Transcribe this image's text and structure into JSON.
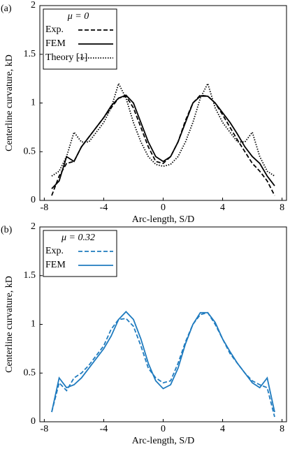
{
  "chart_data": [
    {
      "type": "line",
      "panel_label": "(a)",
      "xlabel": "Arc-length, S/D",
      "ylabel": "Centerline curvature, kD",
      "legend_title": "μ = 0",
      "legend": "upper left",
      "xlim": [
        -8.3,
        8.3
      ],
      "ylim": [
        0,
        2
      ],
      "xticks": [
        -8,
        -4,
        0,
        4,
        8
      ],
      "yticks": [
        0,
        0.5,
        1,
        1.5,
        2
      ],
      "x": [
        -7.5,
        -7,
        -6.5,
        -6,
        -5.5,
        -5,
        -4.5,
        -4,
        -3.5,
        -3,
        -2.5,
        -2,
        -1.5,
        -1,
        -0.5,
        0,
        0.5,
        1,
        1.5,
        2,
        2.5,
        3,
        3.5,
        4,
        4.5,
        5,
        5.5,
        6,
        6.5,
        7,
        7.5
      ],
      "series": [
        {
          "name": "Exp.",
          "color": "#000000",
          "linestyle": "dashed",
          "values": [
            0.05,
            0.25,
            0.38,
            0.4,
            0.55,
            0.65,
            0.75,
            0.85,
            0.95,
            1.05,
            1.07,
            0.95,
            0.75,
            0.55,
            0.4,
            0.38,
            0.45,
            0.6,
            0.82,
            1.0,
            1.08,
            1.07,
            1.0,
            0.88,
            0.75,
            0.62,
            0.5,
            0.38,
            0.3,
            0.2,
            0.05
          ]
        },
        {
          "name": "FEM",
          "color": "#000000",
          "linestyle": "solid",
          "values": [
            0.12,
            0.2,
            0.45,
            0.4,
            0.55,
            0.65,
            0.75,
            0.85,
            0.97,
            1.05,
            1.08,
            1.0,
            0.8,
            0.6,
            0.45,
            0.4,
            0.45,
            0.6,
            0.8,
            1.0,
            1.07,
            1.07,
            1.0,
            0.9,
            0.8,
            0.68,
            0.55,
            0.45,
            0.38,
            0.25,
            0.15
          ]
        },
        {
          "name": "Theory [1]",
          "color": "#000000",
          "linestyle": "dotted",
          "values": [
            0.25,
            0.3,
            0.45,
            0.7,
            0.6,
            0.6,
            0.7,
            0.8,
            0.95,
            1.2,
            1.05,
            0.8,
            0.6,
            0.45,
            0.37,
            0.35,
            0.37,
            0.45,
            0.6,
            0.8,
            1.05,
            1.2,
            0.95,
            0.8,
            0.7,
            0.6,
            0.6,
            0.7,
            0.45,
            0.3,
            0.25
          ]
        }
      ]
    },
    {
      "type": "line",
      "panel_label": "(b)",
      "xlabel": "Arc-length, S/D",
      "ylabel": "Centerline curvature, kD",
      "legend_title": "μ = 0.32",
      "legend": "upper left",
      "xlim": [
        -8.3,
        8.3
      ],
      "ylim": [
        0,
        2
      ],
      "xticks": [
        -8,
        -4,
        0,
        4,
        8
      ],
      "yticks": [
        0,
        0.5,
        1,
        1.5,
        2
      ],
      "x": [
        -7.5,
        -7,
        -6.5,
        -6,
        -5.5,
        -5,
        -4.5,
        -4,
        -3.5,
        -3,
        -2.5,
        -2,
        -1.5,
        -1,
        -0.5,
        0,
        0.5,
        1,
        1.5,
        2,
        2.5,
        3,
        3.5,
        4,
        4.5,
        5,
        5.5,
        6,
        6.5,
        7,
        7.5
      ],
      "series": [
        {
          "name": "Exp.",
          "color": "#1f7bbf",
          "linestyle": "dashed",
          "values": [
            0.1,
            0.4,
            0.32,
            0.45,
            0.5,
            0.58,
            0.68,
            0.78,
            0.95,
            1.05,
            1.06,
            0.98,
            0.78,
            0.55,
            0.45,
            0.4,
            0.42,
            0.6,
            0.82,
            1.0,
            1.1,
            1.12,
            1.0,
            0.85,
            0.7,
            0.6,
            0.5,
            0.42,
            0.38,
            0.35,
            0.05
          ]
        },
        {
          "name": "FEM",
          "color": "#1f7bbf",
          "linestyle": "solid",
          "values": [
            0.1,
            0.45,
            0.35,
            0.38,
            0.45,
            0.55,
            0.65,
            0.75,
            0.88,
            1.05,
            1.13,
            1.05,
            0.85,
            0.6,
            0.42,
            0.34,
            0.38,
            0.55,
            0.8,
            1.0,
            1.12,
            1.12,
            1.02,
            0.85,
            0.72,
            0.6,
            0.5,
            0.4,
            0.35,
            0.45,
            0.1
          ]
        }
      ]
    }
  ]
}
